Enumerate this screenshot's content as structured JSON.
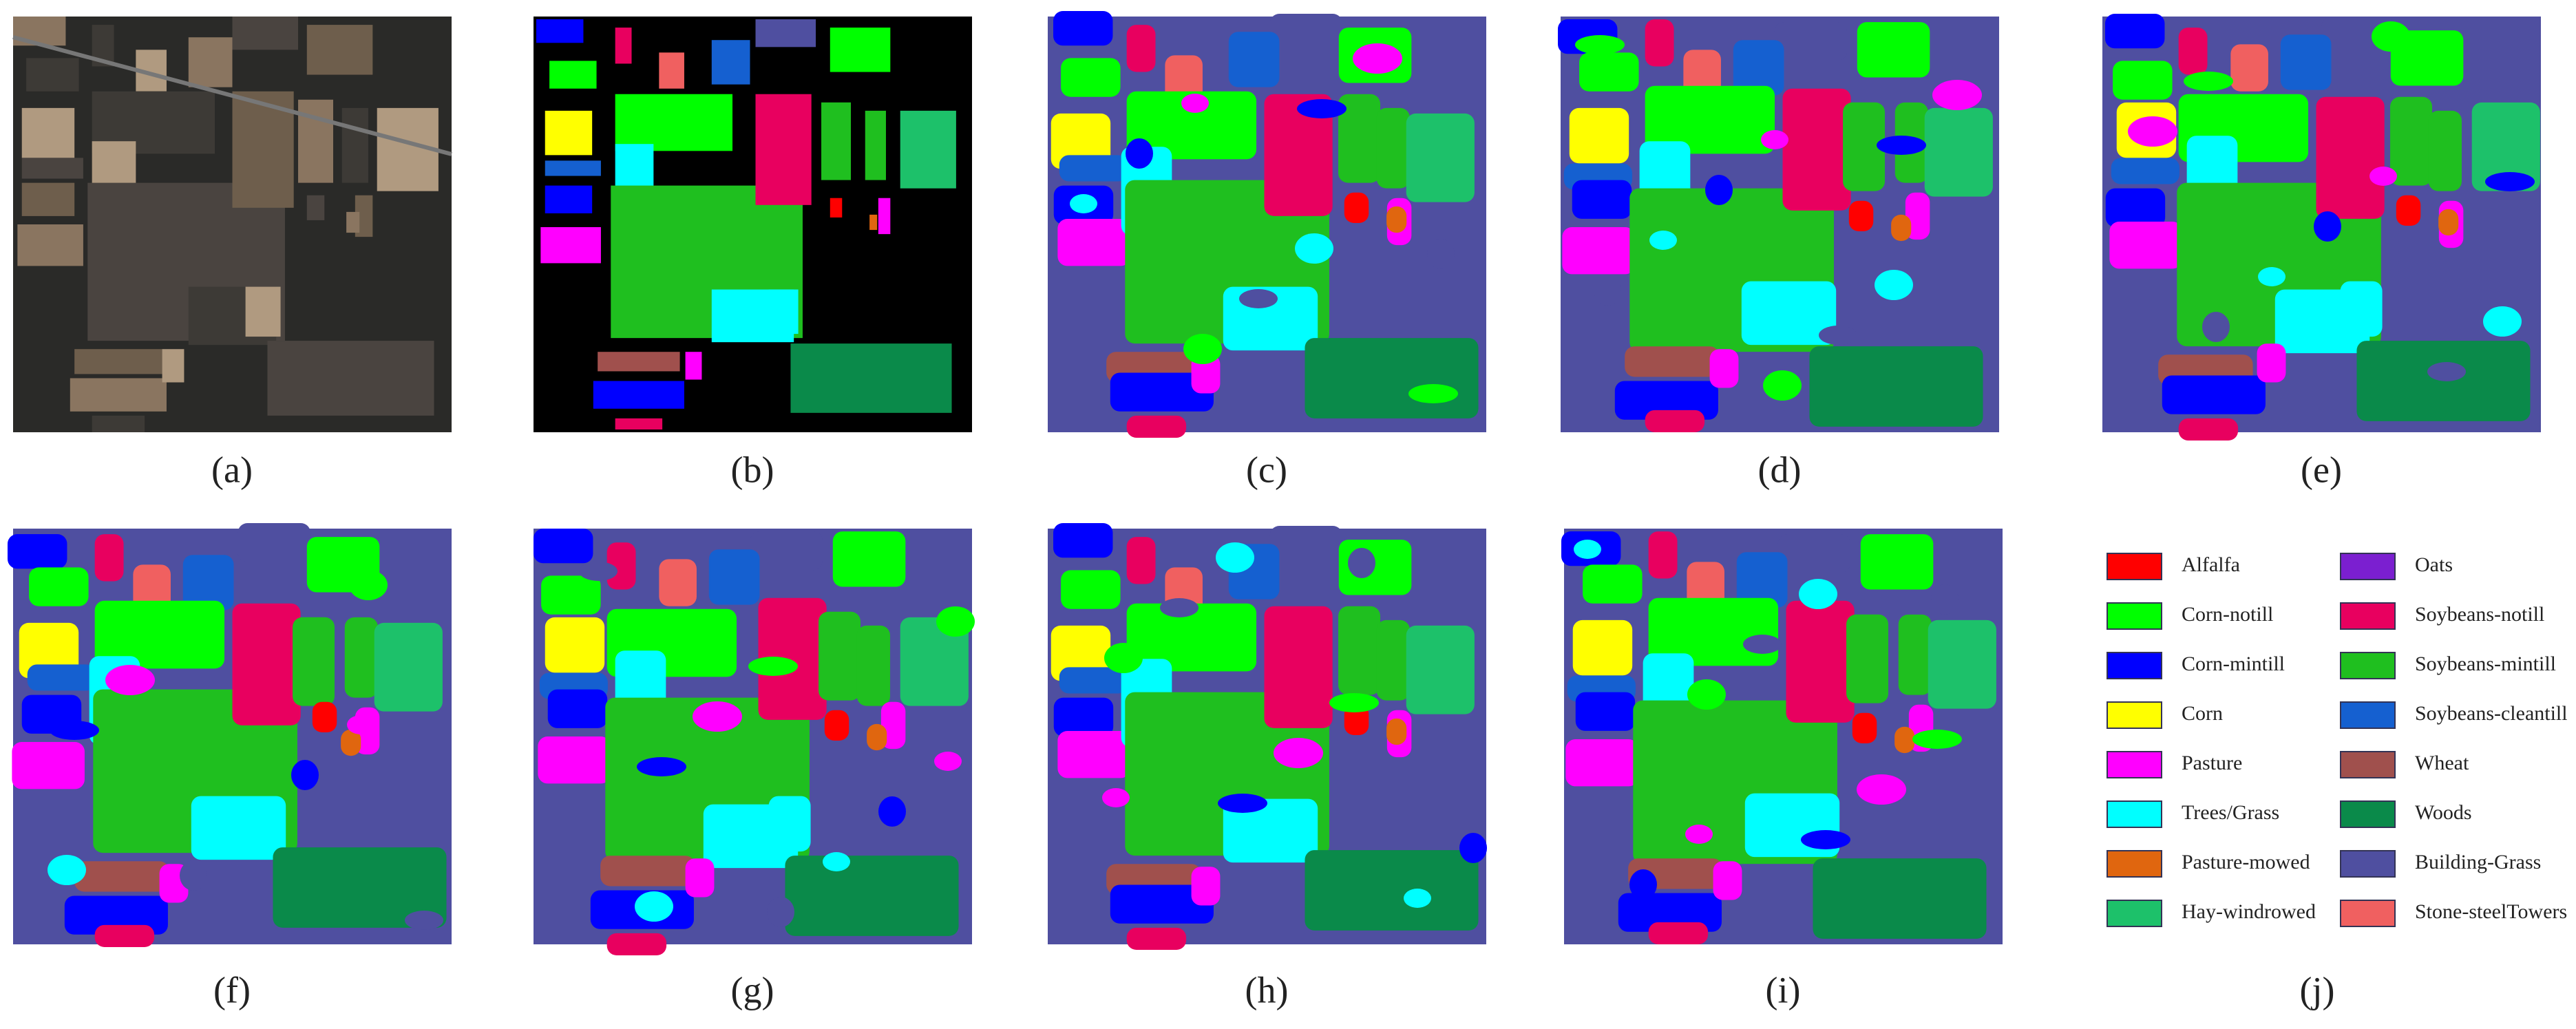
{
  "panels": [
    "(a)",
    "(b)",
    "(c)",
    "(d)",
    "(e)",
    "(f)",
    "(g)",
    "(h)",
    "(i)",
    "(j)"
  ],
  "legend": [
    {
      "name": "Alfalfa",
      "color": "#ff0000"
    },
    {
      "name": "Corn-notill",
      "color": "#00ff00"
    },
    {
      "name": "Corn-mintill",
      "color": "#0000ff"
    },
    {
      "name": "Corn",
      "color": "#ffff00"
    },
    {
      "name": "Pasture",
      "color": "#ff00ff"
    },
    {
      "name": "Trees/Grass",
      "color": "#00ffff"
    },
    {
      "name": "Pasture-mowed",
      "color": "#e0660f"
    },
    {
      "name": "Hay-windrowed",
      "color": "#1dc16a"
    },
    {
      "name": "Oats",
      "color": "#7b1fd0"
    },
    {
      "name": "Soybeans-notill",
      "color": "#e8005f"
    },
    {
      "name": "Soybeans-mintill",
      "color": "#1fbf1f"
    },
    {
      "name": "Soybeans-cleantill",
      "color": "#1560d0"
    },
    {
      "name": "Wheat",
      "color": "#a0504d"
    },
    {
      "name": "Woods",
      "color": "#0a8a4a"
    },
    {
      "name": "Building-Grass",
      "color": "#4f4fa0"
    },
    {
      "name": "Stone-steelTowers",
      "color": "#f06060"
    }
  ]
}
